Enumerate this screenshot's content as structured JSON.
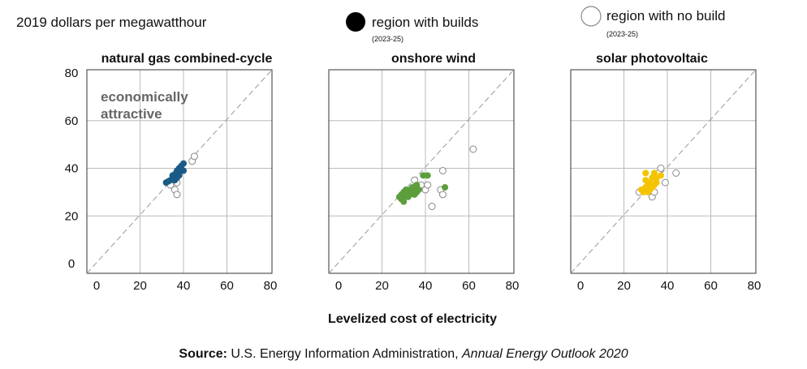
{
  "y_unit_label": "2019 dollars per megawatthour",
  "legend": {
    "builds": {
      "label": "region with builds",
      "sub": "(2023-25)"
    },
    "no_build": {
      "label": "region with no build",
      "sub": "(2023-25)"
    }
  },
  "x_axis_label": "Levelized cost of electricity",
  "annotation": [
    "economically",
    "attractive"
  ],
  "source": {
    "prefix": "Source:",
    "text": " U.S. Energy Information Administration, ",
    "title": "Annual Energy Outlook 2020"
  },
  "colors": {
    "gas": "#1a5a85",
    "wind": "#5c9e3c",
    "solar": "#f5c400",
    "open_marker_stroke": "#888888",
    "grid": "#bbbbbb",
    "diagonal": "#999999"
  },
  "chart_data": [
    {
      "type": "scatter",
      "title": "natural gas combined-cycle",
      "xlim": [
        0,
        80
      ],
      "ylim": [
        0,
        80
      ],
      "xticks": [
        "0",
        "20",
        "40",
        "60",
        "80"
      ],
      "yticks": [
        "0",
        "20",
        "40",
        "60",
        "80"
      ],
      "reference_line": "y = x",
      "series": [
        {
          "name": "region with builds",
          "filled": true,
          "color": "#1a5a85",
          "points": [
            [
              32,
              34
            ],
            [
              33,
              34.5
            ],
            [
              34,
              35
            ],
            [
              35,
              36
            ],
            [
              35,
              37
            ],
            [
              36,
              36
            ],
            [
              36,
              37.5
            ],
            [
              37,
              38
            ],
            [
              37,
              36
            ],
            [
              37,
              39
            ],
            [
              38,
              40
            ],
            [
              38,
              37
            ],
            [
              39,
              39
            ],
            [
              39,
              41
            ],
            [
              40,
              42
            ],
            [
              40,
              39
            ],
            [
              38,
              38
            ],
            [
              36,
              35
            ]
          ]
        },
        {
          "name": "region with no build",
          "filled": false,
          "color": "#888888",
          "points": [
            [
              34,
              33
            ],
            [
              36,
              31
            ],
            [
              37,
              29
            ],
            [
              37,
              34
            ],
            [
              44,
              43
            ],
            [
              45,
              45
            ]
          ]
        }
      ]
    },
    {
      "type": "scatter",
      "title": "onshore wind",
      "xlim": [
        0,
        80
      ],
      "ylim": [
        0,
        80
      ],
      "xticks": [
        "0",
        "20",
        "40",
        "60",
        "80"
      ],
      "yticks": [],
      "reference_line": "y = x",
      "series": [
        {
          "name": "region with builds",
          "filled": true,
          "color": "#5c9e3c",
          "points": [
            [
              28,
              28
            ],
            [
              29,
              27
            ],
            [
              29,
              29
            ],
            [
              30,
              28
            ],
            [
              30,
              30
            ],
            [
              31,
              29
            ],
            [
              31,
              31
            ],
            [
              32,
              28
            ],
            [
              32,
              30
            ],
            [
              33,
              31
            ],
            [
              33,
              29
            ],
            [
              34,
              30
            ],
            [
              34,
              32
            ],
            [
              35,
              29
            ],
            [
              35,
              31
            ],
            [
              36,
              30
            ],
            [
              36,
              33
            ],
            [
              37,
              31
            ],
            [
              30,
              26
            ],
            [
              32,
              29
            ],
            [
              39,
              37
            ],
            [
              41,
              37
            ],
            [
              49,
              32
            ]
          ]
        },
        {
          "name": "region with no build",
          "filled": false,
          "color": "#888888",
          "points": [
            [
              35,
              35
            ],
            [
              38,
              33
            ],
            [
              40,
              31
            ],
            [
              41,
              33
            ],
            [
              43,
              24
            ],
            [
              47,
              31
            ],
            [
              48,
              29
            ],
            [
              48,
              39
            ],
            [
              62,
              48
            ]
          ]
        }
      ]
    },
    {
      "type": "scatter",
      "title": "solar photovoltaic",
      "xlim": [
        0,
        80
      ],
      "ylim": [
        0,
        80
      ],
      "xticks": [
        "0",
        "20",
        "40",
        "60",
        "80"
      ],
      "yticks": [],
      "reference_line": "y = x",
      "series": [
        {
          "name": "region with builds",
          "filled": true,
          "color": "#f5c400",
          "points": [
            [
              28,
              31
            ],
            [
              29,
              30
            ],
            [
              30,
              32
            ],
            [
              30,
              38
            ],
            [
              31,
              33
            ],
            [
              31,
              30
            ],
            [
              32,
              34
            ],
            [
              33,
              36
            ],
            [
              33,
              32
            ],
            [
              34,
              33
            ],
            [
              35,
              34
            ],
            [
              35,
              36
            ],
            [
              34,
              38
            ],
            [
              37,
              37
            ],
            [
              32,
              31
            ],
            [
              30,
              35
            ]
          ]
        },
        {
          "name": "region with no build",
          "filled": false,
          "color": "#888888",
          "points": [
            [
              27,
              30
            ],
            [
              33,
              28
            ],
            [
              34,
              30
            ],
            [
              36,
              38
            ],
            [
              37,
              40
            ],
            [
              39,
              34
            ],
            [
              44,
              38
            ]
          ]
        }
      ]
    }
  ]
}
